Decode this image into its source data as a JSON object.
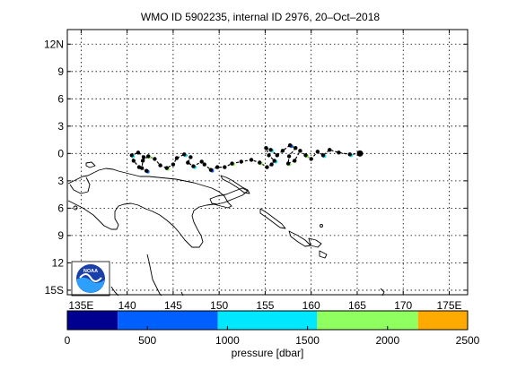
{
  "title": "WMO ID 5902235, internal ID 2976, 20–Oct–2018",
  "map": {
    "lon_range": [
      133.5,
      177
    ],
    "lat_range": [
      15.5,
      -13.6
    ],
    "lon_ticks": [
      {
        "value": 135,
        "label": "135E"
      },
      {
        "value": 140,
        "label": "140"
      },
      {
        "value": 145,
        "label": "145"
      },
      {
        "value": 150,
        "label": "150"
      },
      {
        "value": 155,
        "label": "155"
      },
      {
        "value": 160,
        "label": "160"
      },
      {
        "value": 165,
        "label": "165"
      },
      {
        "value": 170,
        "label": "170"
      },
      {
        "value": 175,
        "label": "175E"
      }
    ],
    "lat_ticks": [
      {
        "value": -12,
        "label": "12N"
      },
      {
        "value": -9,
        "label": "9"
      },
      {
        "value": -6,
        "label": "6"
      },
      {
        "value": -3,
        "label": "3"
      },
      {
        "value": 0,
        "label": "0"
      },
      {
        "value": 3,
        "label": "3"
      },
      {
        "value": 6,
        "label": "6"
      },
      {
        "value": 9,
        "label": "9"
      },
      {
        "value": 12,
        "label": "12"
      },
      {
        "value": 15,
        "label": "15S"
      }
    ],
    "grid": true,
    "track_points": [
      [
        165.3,
        0.0
      ],
      [
        164.2,
        0.1
      ],
      [
        163.0,
        -0.1
      ],
      [
        162.0,
        -0.4
      ],
      [
        161.3,
        0.2
      ],
      [
        160.7,
        -0.2
      ],
      [
        160.0,
        0.6
      ],
      [
        159.4,
        0.2
      ],
      [
        158.8,
        -0.3
      ],
      [
        158.2,
        0.8
      ],
      [
        157.5,
        1.1
      ],
      [
        157.6,
        0.3
      ],
      [
        158.3,
        -0.6
      ],
      [
        157.7,
        -0.9
      ],
      [
        156.9,
        -0.3
      ],
      [
        156.3,
        0.2
      ],
      [
        155.6,
        -0.4
      ],
      [
        155.1,
        -0.6
      ],
      [
        155.4,
        0.2
      ],
      [
        156.0,
        0.8
      ],
      [
        155.7,
        1.2
      ],
      [
        155.2,
        1.5
      ],
      [
        154.4,
        1.0
      ],
      [
        153.5,
        0.7
      ],
      [
        152.4,
        0.9
      ],
      [
        151.4,
        1.1
      ],
      [
        150.6,
        1.5
      ],
      [
        149.8,
        1.5
      ],
      [
        149.1,
        1.8
      ],
      [
        148.4,
        1.2
      ],
      [
        148.1,
        0.9
      ],
      [
        147.2,
        1.4
      ],
      [
        146.6,
        1.0
      ],
      [
        146.9,
        0.4
      ],
      [
        146.2,
        0.1
      ],
      [
        145.4,
        0.5
      ],
      [
        145.0,
        1.2
      ],
      [
        144.3,
        1.6
      ],
      [
        143.6,
        1.3
      ],
      [
        143.0,
        0.6
      ],
      [
        142.3,
        0.3
      ],
      [
        141.7,
        0.8
      ],
      [
        141.6,
        1.6
      ],
      [
        142.1,
        1.9
      ],
      [
        141.3,
        1.5
      ],
      [
        140.7,
        0.8
      ],
      [
        140.5,
        0.2
      ],
      [
        141.2,
        -0.1
      ],
      [
        141.8,
        0.4
      ]
    ],
    "float_marker": [
      165.3,
      0.0
    ],
    "logo_text": "NOAA"
  },
  "colorbar": {
    "label": "pressure [dbar]",
    "ticks": [
      {
        "value": 0,
        "label": "0"
      },
      {
        "value": 500,
        "label": "500"
      },
      {
        "value": 1000,
        "label": "1000"
      },
      {
        "value": 1500,
        "label": "1500"
      },
      {
        "value": 2000,
        "label": "2000"
      },
      {
        "value": 2500,
        "label": "2500"
      }
    ],
    "range": [
      0,
      2500
    ],
    "bands": [
      {
        "from": 0,
        "to": 315,
        "color": "#000090"
      },
      {
        "from": 315,
        "to": 940,
        "color": "#0060ff"
      },
      {
        "from": 940,
        "to": 1560,
        "color": "#00e8ff"
      },
      {
        "from": 1560,
        "to": 2190,
        "color": "#90ff60"
      },
      {
        "from": 2190,
        "to": 2500,
        "color": "#ffaa00"
      }
    ]
  }
}
